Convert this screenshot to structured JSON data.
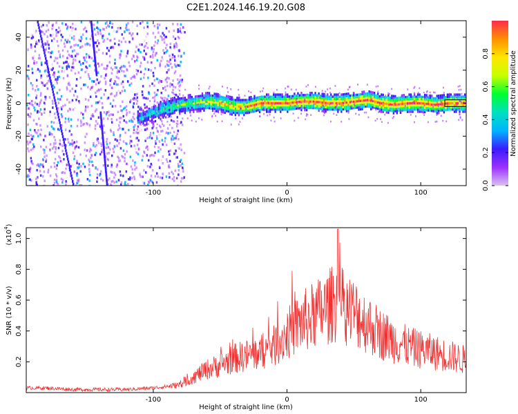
{
  "title": "C2E1.2024.146.19.20.G08",
  "chart_data": [
    {
      "type": "heatmap",
      "xlabel": "Height of straight line (km)",
      "ylabel": "Frequency (Hz)",
      "xlim": [
        -195,
        134
      ],
      "ylim": [
        -50,
        50
      ],
      "xticks": [
        -100,
        0,
        100
      ],
      "yticks": [
        -40,
        -20,
        0,
        20,
        40
      ],
      "ridge": {
        "x": [
          -110,
          -100,
          -90,
          -80,
          -70,
          -60,
          -50,
          -40,
          -30,
          -20,
          -10,
          0,
          10,
          20,
          30,
          40,
          50,
          60,
          70,
          80,
          90,
          100,
          110,
          120,
          134
        ],
        "freq": [
          -9,
          -6,
          -3,
          -1,
          0,
          1,
          0,
          -2,
          -2,
          0,
          0,
          0,
          1,
          1,
          0,
          0,
          1,
          2,
          0,
          -1,
          0,
          0,
          -1,
          0,
          0
        ]
      },
      "colorbar": {
        "label": "Normalized spectral amplitude",
        "ticks": [
          0.0,
          0.2,
          0.4,
          0.6,
          0.8
        ],
        "range": [
          0,
          1
        ],
        "colors": [
          "#d9c2f0",
          "#9b30ff",
          "#3a1cff",
          "#00b4ff",
          "#00e0c0",
          "#00ff30",
          "#c8ff00",
          "#ffe600",
          "#ff9000",
          "#ff2a4a"
        ]
      }
    },
    {
      "type": "line",
      "xlabel": "Height of straight line (km)",
      "ylabel": "SNR (10 * v/v)",
      "y_multiplier": "(x10",
      "y_multiplier_exp": "4",
      "xlim": [
        -195,
        134
      ],
      "ylim": [
        0,
        1.07
      ],
      "xticks": [
        -100,
        0,
        100
      ],
      "yticks": [
        0.2,
        0.4,
        0.6,
        0.8,
        1.0
      ],
      "series": [
        {
          "color": "#ee3030",
          "x": [
            -195,
            -180,
            -160,
            -140,
            -120,
            -100,
            -90,
            -80,
            -70,
            -60,
            -50,
            -40,
            -30,
            -20,
            -10,
            0,
            10,
            20,
            30,
            35,
            38,
            40,
            50,
            60,
            70,
            80,
            90,
            100,
            110,
            120,
            134
          ],
          "y": [
            0.03,
            0.03,
            0.02,
            0.02,
            0.02,
            0.03,
            0.04,
            0.05,
            0.1,
            0.15,
            0.18,
            0.22,
            0.24,
            0.26,
            0.3,
            0.38,
            0.45,
            0.5,
            0.55,
            0.58,
            0.6,
            0.57,
            0.52,
            0.45,
            0.38,
            0.34,
            0.3,
            0.28,
            0.26,
            0.24,
            0.21
          ]
        }
      ]
    }
  ]
}
